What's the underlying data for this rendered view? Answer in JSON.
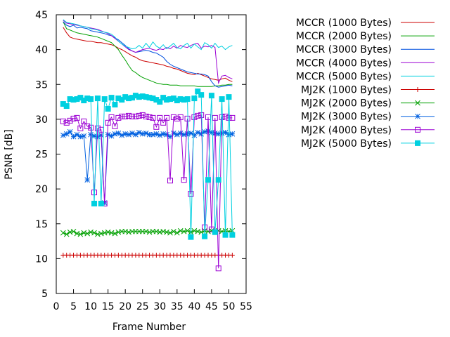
{
  "chart_data": {
    "type": "line",
    "xlabel": "Frame Number",
    "ylabel": "PSNR [dB]",
    "xlim": [
      0,
      55
    ],
    "ylim": [
      5,
      45
    ],
    "xticks": [
      0,
      5,
      10,
      15,
      20,
      25,
      30,
      35,
      40,
      45,
      50,
      55
    ],
    "yticks": [
      5,
      10,
      15,
      20,
      25,
      30,
      35,
      40,
      45
    ],
    "grid": false,
    "legend_position": "right-outside",
    "x": [
      2,
      3,
      4,
      5,
      6,
      7,
      8,
      9,
      10,
      11,
      12,
      13,
      14,
      15,
      16,
      17,
      18,
      19,
      20,
      21,
      22,
      23,
      24,
      25,
      26,
      27,
      28,
      29,
      30,
      31,
      32,
      33,
      34,
      35,
      36,
      37,
      38,
      39,
      40,
      41,
      42,
      43,
      44,
      45,
      46,
      47,
      48,
      49,
      50,
      51
    ],
    "series": [
      {
        "name": "MCCR (1000 Bytes)",
        "color": "#cc0000",
        "marker": "none",
        "values": [
          43.2,
          42.4,
          41.8,
          41.6,
          41.5,
          41.4,
          41.3,
          41.2,
          41.2,
          41.1,
          41.0,
          41.0,
          40.9,
          40.8,
          40.7,
          40.5,
          40.2,
          40.0,
          39.7,
          39.4,
          39.1,
          38.9,
          38.6,
          38.4,
          38.3,
          38.2,
          38.1,
          38.0,
          37.9,
          37.8,
          37.6,
          37.5,
          37.3,
          37.2,
          37.0,
          36.8,
          36.6,
          36.5,
          36.4,
          36.6,
          36.4,
          36.2,
          36.0,
          35.8,
          35.7,
          35.6,
          35.8,
          35.9,
          35.6,
          35.4
        ]
      },
      {
        "name": "MCCR (2000 Bytes)",
        "color": "#00a000",
        "marker": "none",
        "values": [
          44.0,
          43.0,
          42.8,
          42.6,
          42.4,
          42.3,
          42.2,
          42.1,
          42.0,
          41.9,
          41.8,
          41.6,
          41.4,
          41.2,
          41.0,
          40.5,
          40.0,
          39.2,
          38.5,
          37.7,
          37.0,
          36.7,
          36.3,
          36.0,
          35.8,
          35.6,
          35.4,
          35.2,
          35.1,
          35.0,
          35.0,
          34.9,
          34.9,
          34.9,
          34.8,
          34.8,
          34.8,
          34.8,
          34.8,
          34.7,
          34.7,
          34.7,
          34.7,
          34.7,
          34.8,
          34.8,
          34.9,
          34.9,
          35.0,
          35.0
        ]
      },
      {
        "name": "MCCR (3000 Bytes)",
        "color": "#0050e0",
        "marker": "none",
        "values": [
          44.0,
          43.5,
          43.3,
          43.5,
          43.1,
          43.2,
          43.1,
          43.0,
          42.7,
          42.6,
          42.5,
          42.4,
          42.3,
          42.1,
          42.0,
          41.7,
          41.4,
          41.0,
          40.6,
          40.1,
          39.8,
          39.6,
          39.7,
          39.8,
          39.9,
          39.8,
          39.6,
          39.5,
          39.2,
          38.9,
          38.3,
          37.9,
          37.6,
          37.4,
          37.2,
          37.0,
          36.8,
          36.7,
          36.6,
          36.5,
          36.5,
          36.4,
          36.2,
          35.4,
          34.8,
          34.6,
          34.7,
          34.8,
          34.9,
          34.8
        ]
      },
      {
        "name": "MCCR (4000 Bytes)",
        "color": "#9b00d3",
        "marker": "none",
        "values": [
          44.2,
          43.8,
          43.7,
          43.6,
          43.5,
          43.4,
          43.3,
          43.2,
          43.1,
          43.0,
          42.9,
          42.7,
          42.5,
          42.3,
          42.0,
          41.6,
          41.2,
          40.8,
          40.4,
          40.0,
          39.8,
          39.6,
          39.8,
          40.0,
          40.1,
          40.2,
          40.0,
          39.9,
          40.1,
          40.0,
          40.3,
          40.1,
          40.5,
          40.2,
          40.6,
          40.4,
          40.3,
          40.6,
          40.8,
          40.9,
          40.2,
          40.5,
          40.4,
          40.6,
          40.3,
          35.2,
          36.2,
          36.3,
          36.0,
          35.8
        ]
      },
      {
        "name": "MCCR (5000 Bytes)",
        "color": "#00d0e0",
        "marker": "none",
        "values": [
          44.3,
          43.9,
          43.8,
          43.7,
          43.6,
          43.4,
          43.3,
          43.2,
          43.0,
          42.9,
          42.8,
          42.6,
          42.5,
          42.4,
          42.2,
          41.8,
          41.2,
          40.8,
          40.5,
          40.3,
          40.1,
          40.2,
          40.6,
          40.2,
          40.9,
          40.3,
          41.1,
          40.5,
          40.2,
          40.7,
          40.1,
          40.5,
          40.9,
          40.3,
          40.1,
          40.6,
          40.9,
          40.2,
          40.8,
          40.4,
          40.0,
          41.0,
          40.7,
          40.2,
          40.9,
          40.3,
          40.5,
          40.0,
          40.4,
          40.6
        ]
      },
      {
        "name": "MJ2K (1000 Bytes)",
        "color": "#cc0000",
        "marker": "plus",
        "values": [
          10.5,
          10.5,
          10.5,
          10.5,
          10.5,
          10.5,
          10.5,
          10.5,
          10.5,
          10.5,
          10.5,
          10.5,
          10.5,
          10.5,
          10.5,
          10.5,
          10.5,
          10.5,
          10.5,
          10.5,
          10.5,
          10.5,
          10.5,
          10.5,
          10.5,
          10.5,
          10.5,
          10.5,
          10.5,
          10.5,
          10.5,
          10.5,
          10.5,
          10.5,
          10.5,
          10.5,
          10.5,
          10.5,
          10.5,
          10.5,
          10.5,
          10.5,
          10.5,
          10.5,
          10.5,
          10.5,
          10.5,
          10.5,
          10.5,
          10.5
        ]
      },
      {
        "name": "MJ2K (2000 Bytes)",
        "color": "#00a000",
        "marker": "x",
        "values": [
          13.7,
          13.5,
          13.8,
          13.9,
          13.6,
          13.5,
          13.7,
          13.6,
          13.8,
          13.7,
          13.5,
          13.6,
          13.7,
          13.8,
          13.7,
          13.6,
          13.8,
          13.9,
          13.9,
          13.8,
          13.9,
          13.9,
          13.9,
          13.9,
          13.9,
          13.8,
          13.9,
          13.9,
          13.8,
          13.9,
          13.8,
          13.7,
          13.9,
          13.7,
          14.0,
          13.9,
          14.0,
          13.8,
          14.0,
          13.9,
          13.8,
          14.0,
          13.9,
          14.0,
          13.9,
          14.0,
          13.9,
          14.0,
          13.9,
          14.0
        ]
      },
      {
        "name": "MJ2K (3000 Bytes)",
        "color": "#0060e0",
        "marker": "star",
        "values": [
          27.7,
          27.9,
          28.2,
          27.5,
          27.8,
          27.5,
          27.6,
          21.3,
          27.8,
          27.6,
          27.5,
          27.7,
          18.0,
          27.8,
          27.6,
          27.9,
          28.0,
          27.7,
          27.9,
          27.8,
          28.0,
          27.8,
          28.1,
          27.9,
          28.0,
          27.8,
          27.8,
          27.9,
          27.7,
          27.9,
          27.8,
          27.5,
          28.0,
          27.8,
          28.0,
          27.8,
          27.9,
          28.0,
          27.7,
          28.1,
          27.9,
          28.2,
          28.3,
          28.1,
          28.0,
          27.9,
          28.0,
          28.1,
          27.8,
          27.9
        ]
      },
      {
        "name": "MJ2K (4000 Bytes)",
        "color": "#9b00d3",
        "marker": "square",
        "values": [
          29.7,
          29.5,
          29.8,
          30.1,
          30.2,
          28.7,
          29.7,
          29.0,
          28.8,
          19.5,
          28.7,
          28.5,
          17.9,
          29.5,
          30.3,
          29.0,
          30.2,
          30.4,
          30.4,
          30.5,
          30.4,
          30.4,
          30.5,
          30.6,
          30.4,
          30.3,
          30.2,
          28.9,
          30.2,
          29.5,
          30.2,
          21.2,
          30.3,
          30.1,
          30.3,
          21.3,
          30.1,
          19.3,
          30.3,
          30.5,
          30.6,
          14.5,
          30.3,
          14.2,
          30.2,
          8.6,
          30.3,
          30.4,
          30.2,
          30.2
        ]
      },
      {
        "name": "MJ2K (5000 Bytes)",
        "color": "#00d0e0",
        "marker": "filled-square",
        "values": [
          32.2,
          31.9,
          32.9,
          32.8,
          32.9,
          33.1,
          32.7,
          33.0,
          32.9,
          17.9,
          33.0,
          17.9,
          32.9,
          31.5,
          33.1,
          32.1,
          33.0,
          32.8,
          33.2,
          33.0,
          33.1,
          33.4,
          33.2,
          33.3,
          33.2,
          33.1,
          33.0,
          32.8,
          32.5,
          33.1,
          32.8,
          32.9,
          33.0,
          32.7,
          32.9,
          32.8,
          32.9,
          13.1,
          33.0,
          34.0,
          33.5,
          13.2,
          21.3,
          33.4,
          13.8,
          21.3,
          32.9,
          13.4,
          33.2,
          13.4
        ]
      }
    ]
  }
}
